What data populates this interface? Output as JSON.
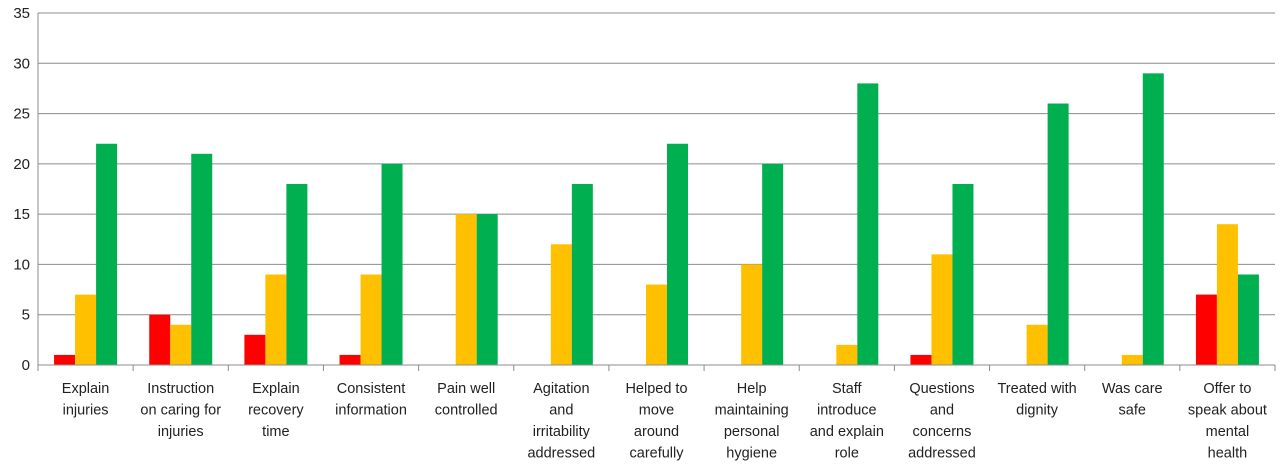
{
  "chart_data": {
    "type": "bar",
    "categories": [
      [
        "Explain",
        "injuries"
      ],
      [
        "Instruction",
        "on caring for",
        "injuries"
      ],
      [
        "Explain",
        "recovery",
        "time"
      ],
      [
        "Consistent",
        "information"
      ],
      [
        "Pain well",
        "controlled"
      ],
      [
        "Agitation",
        "and",
        "irritability",
        "addressed"
      ],
      [
        "Helped to",
        "move",
        "around",
        "carefully"
      ],
      [
        "Help",
        "maintaining",
        "personal",
        "hygiene"
      ],
      [
        "Staff",
        "introduce",
        "and explain",
        "role"
      ],
      [
        "Questions",
        "and",
        "concerns",
        "addressed"
      ],
      [
        "Treated with",
        "dignity"
      ],
      [
        "Was care",
        "safe"
      ],
      [
        "Offer to",
        "speak about",
        "mental",
        "health"
      ]
    ],
    "series": [
      {
        "color": "#ff0000",
        "values": [
          1,
          5,
          3,
          1,
          0,
          0,
          0,
          0,
          0,
          1,
          0,
          0,
          7
        ]
      },
      {
        "color": "#ffc000",
        "values": [
          7,
          4,
          9,
          9,
          15,
          12,
          8,
          10,
          2,
          11,
          4,
          1,
          14
        ]
      },
      {
        "color": "#00b050",
        "values": [
          22,
          21,
          18,
          20,
          15,
          18,
          22,
          20,
          28,
          18,
          26,
          29,
          9
        ]
      }
    ],
    "ylim": [
      0,
      35
    ],
    "yticks": [
      0,
      5,
      10,
      15,
      20,
      25,
      30,
      35
    ],
    "grid": true,
    "legend": "none"
  }
}
